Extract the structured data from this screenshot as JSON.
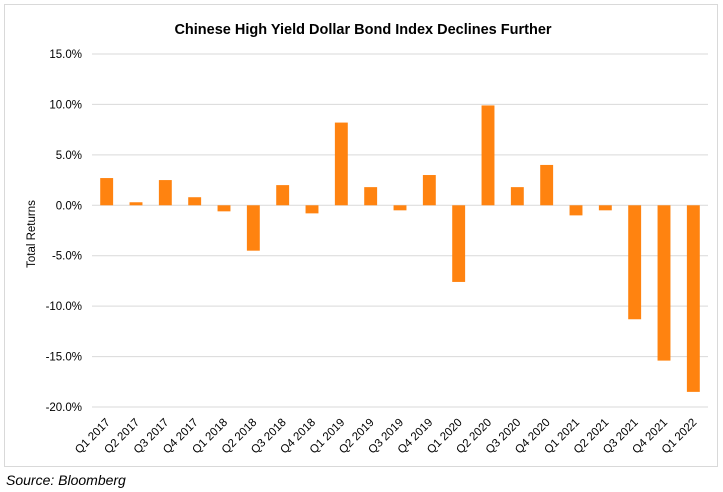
{
  "source_note": "Source: Bloomberg",
  "chart_data": {
    "type": "bar",
    "title": "Chinese High Yield Dollar Bond Index Declines Further",
    "xlabel": "",
    "ylabel": "Total Returns",
    "ylim": [
      -20,
      15
    ],
    "yticks": [
      15,
      10,
      5,
      0,
      -5,
      -10,
      -15,
      -20
    ],
    "ytick_labels": [
      "15.0%",
      "10.0%",
      "5.0%",
      "0.0%",
      "-5.0%",
      "-10.0%",
      "-15.0%",
      "-20.0%"
    ],
    "grid": true,
    "bar_color": "#FF8310",
    "categories": [
      "Q1 2017",
      "Q2 2017",
      "Q3 2017",
      "Q4 2017",
      "Q1 2018",
      "Q2 2018",
      "Q3 2018",
      "Q4 2018",
      "Q1 2019",
      "Q2 2019",
      "Q3 2019",
      "Q4 2019",
      "Q1 2020",
      "Q2 2020",
      "Q3 2020",
      "Q4 2020",
      "Q1 2021",
      "Q2 2021",
      "Q3 2021",
      "Q4 2021",
      "Q1 2022"
    ],
    "values": [
      2.7,
      0.3,
      2.5,
      0.8,
      -0.6,
      -4.5,
      2.0,
      -0.8,
      8.2,
      1.8,
      -0.5,
      3.0,
      -7.6,
      9.9,
      1.8,
      4.0,
      -1.0,
      -0.5,
      -11.3,
      -15.4,
      -18.5
    ]
  }
}
